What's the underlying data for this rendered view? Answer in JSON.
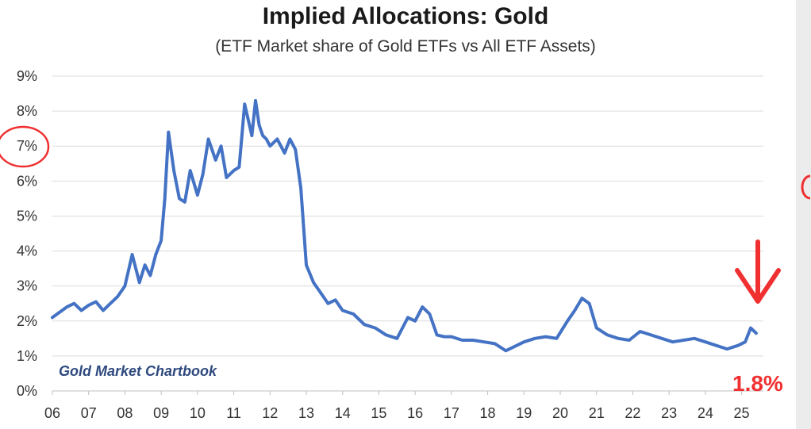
{
  "title": "Implied Allocations: Gold",
  "subtitle": "(ETF Market share of Gold ETFs vs All ETF Assets)",
  "source_label": "Gold Market Chartbook",
  "callout": {
    "value_label": "1.8%",
    "color": "#f03030"
  },
  "highlight_tick": "7%",
  "colors": {
    "line": "#4472c4",
    "grid": "#dcdcdc",
    "annotation": "#f03030"
  },
  "chart_data": {
    "type": "line",
    "title": "Implied Allocations: Gold",
    "subtitle": "(ETF Market share of Gold ETFs vs All ETF Assets)",
    "xlabel": "",
    "ylabel": "",
    "ylim": [
      0,
      9
    ],
    "xlim": [
      2006,
      2025.6
    ],
    "y_ticks": [
      "0%",
      "1%",
      "2%",
      "3%",
      "4%",
      "5%",
      "6%",
      "7%",
      "8%",
      "9%"
    ],
    "x_ticks": [
      "06",
      "07",
      "08",
      "09",
      "10",
      "11",
      "12",
      "13",
      "14",
      "15",
      "16",
      "17",
      "18",
      "19",
      "20",
      "21",
      "22",
      "23",
      "24",
      "25"
    ],
    "grid": true,
    "series": [
      {
        "x": [
          2006.0,
          2006.2,
          2006.4,
          2006.6,
          2006.8,
          2007.0,
          2007.2,
          2007.4,
          2007.6,
          2007.8,
          2008.0,
          2008.2,
          2008.4,
          2008.55,
          2008.7,
          2008.85,
          2009.0,
          2009.1,
          2009.2,
          2009.35,
          2009.5,
          2009.65,
          2009.8,
          2010.0,
          2010.15,
          2010.3,
          2010.5,
          2010.65,
          2010.8,
          2011.0,
          2011.15,
          2011.3,
          2011.5,
          2011.6,
          2011.7,
          2011.8,
          2011.9,
          2012.0,
          2012.2,
          2012.4,
          2012.55,
          2012.7,
          2012.85,
          2013.0,
          2013.2,
          2013.4,
          2013.6,
          2013.8,
          2014.0,
          2014.3,
          2014.6,
          2014.9,
          2015.2,
          2015.5,
          2015.8,
          2016.0,
          2016.2,
          2016.4,
          2016.6,
          2016.8,
          2017.0,
          2017.3,
          2017.6,
          2017.9,
          2018.2,
          2018.5,
          2018.8,
          2019.0,
          2019.3,
          2019.6,
          2019.9,
          2020.2,
          2020.4,
          2020.6,
          2020.8,
          2021.0,
          2021.3,
          2021.6,
          2021.9,
          2022.2,
          2022.5,
          2022.8,
          2023.1,
          2023.4,
          2023.7,
          2024.0,
          2024.3,
          2024.6,
          2024.9,
          2025.1,
          2025.25,
          2025.4
        ],
        "y": [
          2.1,
          2.25,
          2.4,
          2.5,
          2.3,
          2.45,
          2.55,
          2.3,
          2.5,
          2.7,
          3.0,
          3.9,
          3.1,
          3.6,
          3.3,
          3.9,
          4.3,
          5.5,
          7.4,
          6.3,
          5.5,
          5.4,
          6.3,
          5.6,
          6.2,
          7.2,
          6.6,
          7.0,
          6.1,
          6.3,
          6.4,
          8.2,
          7.3,
          8.3,
          7.6,
          7.3,
          7.2,
          7.0,
          7.2,
          6.8,
          7.2,
          6.9,
          5.8,
          3.6,
          3.1,
          2.8,
          2.5,
          2.6,
          2.3,
          2.2,
          1.9,
          1.8,
          1.6,
          1.5,
          2.1,
          2.0,
          2.4,
          2.2,
          1.6,
          1.55,
          1.55,
          1.45,
          1.45,
          1.4,
          1.35,
          1.15,
          1.3,
          1.4,
          1.5,
          1.55,
          1.5,
          2.0,
          2.3,
          2.65,
          2.5,
          1.8,
          1.6,
          1.5,
          1.45,
          1.7,
          1.6,
          1.5,
          1.4,
          1.45,
          1.5,
          1.4,
          1.3,
          1.2,
          1.3,
          1.4,
          1.8,
          1.65
        ]
      }
    ]
  }
}
